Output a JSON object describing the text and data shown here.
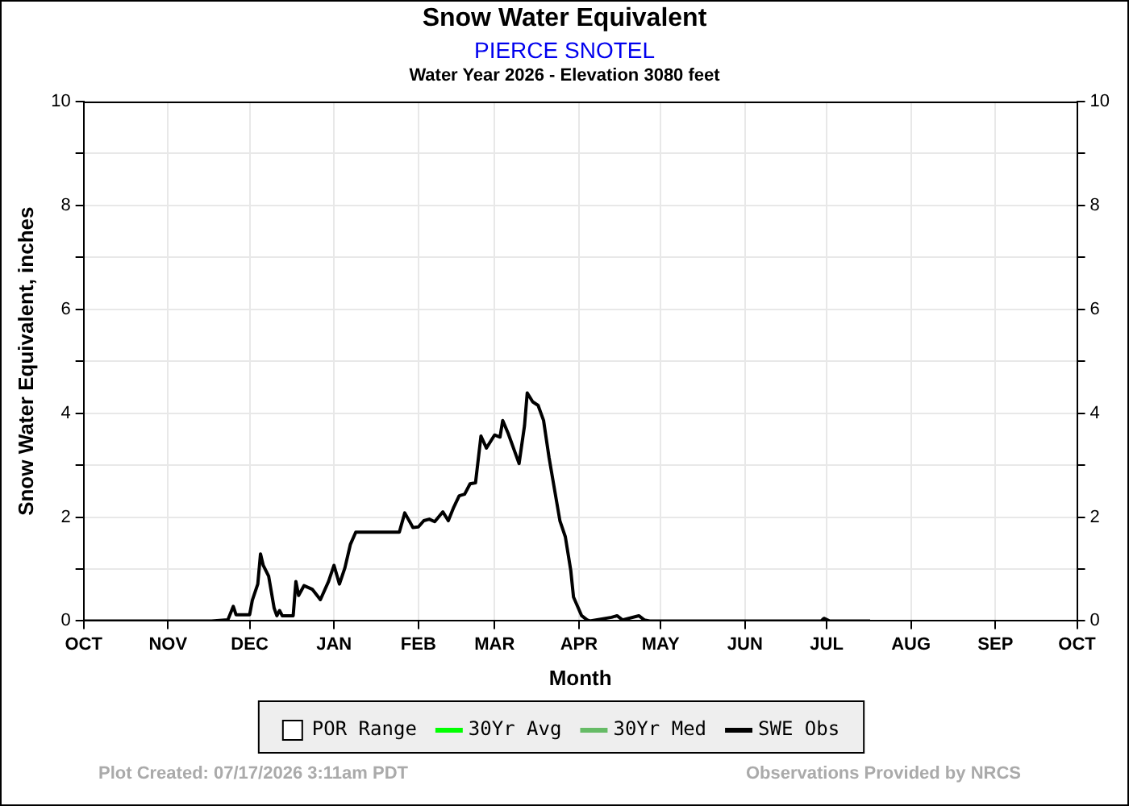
{
  "chart_data": {
    "type": "line",
    "title": "Snow Water Equivalent",
    "subtitle": "PIERCE SNOTEL",
    "annotations": [
      "Water Year 2026 -  Elevation 3080 feet",
      "Plot Created: 07/17/2026 3:11am PDT",
      "Observations Provided by NRCS"
    ],
    "xlabel": "Month",
    "ylabel": "Snow Water Equivalent, inches",
    "xlim": [
      "2025-10-01",
      "2026-10-01"
    ],
    "xticks": [
      {
        "value": "2025-10-01",
        "label": "OCT"
      },
      {
        "value": "2025-11-01",
        "label": "NOV"
      },
      {
        "value": "2025-12-01",
        "label": "DEC"
      },
      {
        "value": "2026-01-01",
        "label": "JAN"
      },
      {
        "value": "2026-02-01",
        "label": "FEB"
      },
      {
        "value": "2026-03-01",
        "label": "MAR"
      },
      {
        "value": "2026-04-01",
        "label": "APR"
      },
      {
        "value": "2026-05-01",
        "label": "MAY"
      },
      {
        "value": "2026-06-01",
        "label": "JUN"
      },
      {
        "value": "2026-07-01",
        "label": "JUL"
      },
      {
        "value": "2026-08-01",
        "label": "AUG"
      },
      {
        "value": "2026-09-01",
        "label": "SEP"
      },
      {
        "value": "2026-10-01",
        "label": "OCT"
      }
    ],
    "ylim": [
      0,
      10
    ],
    "yticks": [
      0,
      {
        "value": 1,
        "label": null
      },
      2,
      {
        "value": 3,
        "label": null
      },
      4,
      {
        "value": 5,
        "label": null
      },
      6,
      {
        "value": 7,
        "label": null
      },
      8,
      {
        "value": 9,
        "label": null
      },
      10
    ],
    "y2lim": [
      0,
      10
    ],
    "y2ticks": [
      0,
      {
        "value": 1,
        "label": null
      },
      2,
      {
        "value": 3,
        "label": null
      },
      4,
      {
        "value": 5,
        "label": null
      },
      6,
      {
        "value": 7,
        "label": null
      },
      8,
      {
        "value": 9,
        "label": null
      },
      10
    ],
    "grid": true,
    "legend": "bottom",
    "marker": "none",
    "line_style": "solid",
    "series": [
      {
        "name": "POR Range",
        "type": "area",
        "color": "#ffffff"
      },
      {
        "name": "30Yr Avg",
        "color": "#00ff00"
      },
      {
        "name": "30Yr Med",
        "color": "#66bb66"
      },
      {
        "name": "SWE Obs",
        "color": "#000000",
        "x": [
          "2025-10-01",
          "2025-11-17",
          "2025-11-23",
          "2025-11-25",
          "2025-11-26",
          "2025-12-01",
          "2025-12-02",
          "2025-12-04",
          "2025-12-05",
          "2025-12-06",
          "2025-12-08",
          "2025-12-10",
          "2025-12-11",
          "2025-12-12",
          "2025-12-13",
          "2025-12-17",
          "2025-12-18",
          "2025-12-19",
          "2025-12-21",
          "2025-12-24",
          "2025-12-27",
          "2025-12-30",
          "2026-01-01",
          "2026-01-03",
          "2026-01-05",
          "2026-01-07",
          "2026-01-09",
          "2026-01-25",
          "2026-01-27",
          "2026-01-30",
          "2026-02-01",
          "2026-02-03",
          "2026-02-05",
          "2026-02-07",
          "2026-02-10",
          "2026-02-12",
          "2026-02-14",
          "2026-02-16",
          "2026-02-18",
          "2026-02-20",
          "2026-02-22",
          "2026-02-24",
          "2026-02-26",
          "2026-03-01",
          "2026-03-03",
          "2026-03-04",
          "2026-03-06",
          "2026-03-10",
          "2026-03-12",
          "2026-03-13",
          "2026-03-15",
          "2026-03-17",
          "2026-03-19",
          "2026-03-21",
          "2026-03-23",
          "2026-03-25",
          "2026-03-27",
          "2026-03-29",
          "2026-03-30",
          "2026-04-02",
          "2026-04-04",
          "2026-04-05",
          "2026-04-13",
          "2026-04-15",
          "2026-04-17",
          "2026-04-23",
          "2026-04-25",
          "2026-04-27",
          "2026-06-29",
          "2026-06-30",
          "2026-07-02",
          "2026-07-17"
        ],
        "values": [
          0,
          0,
          0.02,
          0.28,
          0.12,
          0.12,
          0.4,
          0.71,
          1.29,
          1.07,
          0.86,
          0.25,
          0.1,
          0.2,
          0.1,
          0.1,
          0.76,
          0.49,
          0.68,
          0.61,
          0.41,
          0.76,
          1.07,
          0.71,
          1.02,
          1.47,
          1.71,
          1.71,
          2.08,
          1.8,
          1.81,
          1.93,
          1.96,
          1.91,
          2.1,
          1.93,
          2.19,
          2.41,
          2.44,
          2.64,
          2.66,
          3.56,
          3.33,
          3.58,
          3.54,
          3.86,
          3.61,
          3.03,
          3.76,
          4.39,
          4.22,
          4.15,
          3.86,
          3.15,
          2.54,
          1.93,
          1.62,
          0.97,
          0.46,
          0.1,
          0.02,
          0,
          0.07,
          0.1,
          0.02,
          0.1,
          0.02,
          0,
          0,
          0.05,
          0,
          0
        ]
      }
    ]
  }
}
